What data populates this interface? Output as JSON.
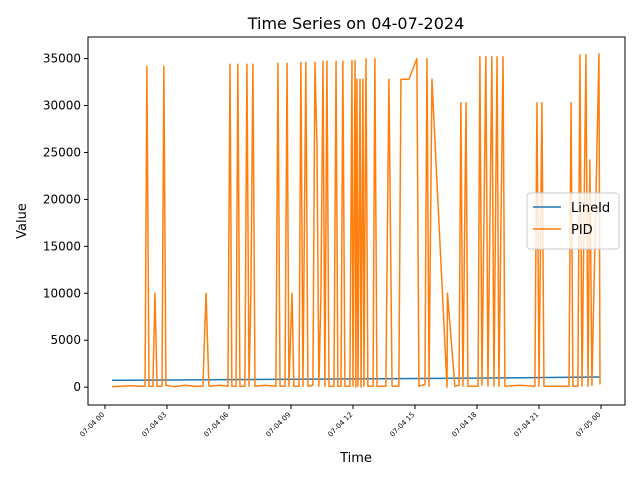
{
  "chart_data": {
    "type": "line",
    "title": "Time Series on 04-07-2024",
    "xlabel": "Time",
    "ylabel": "Value",
    "xlim": [
      -0.82,
      25.16
    ],
    "ylim": [
      -1900,
      37300
    ],
    "xticks": [
      {
        "value": 0,
        "label": "07-04 00"
      },
      {
        "value": 3,
        "label": "07-04 03"
      },
      {
        "value": 6,
        "label": "07-04 06"
      },
      {
        "value": 9,
        "label": "07-04 09"
      },
      {
        "value": 12,
        "label": "07-04 12"
      },
      {
        "value": 15,
        "label": "07-04 15"
      },
      {
        "value": 18,
        "label": "07-04 18"
      },
      {
        "value": 21,
        "label": "07-04 21"
      },
      {
        "value": 24,
        "label": "07-05 00"
      }
    ],
    "yticks": [
      0,
      5000,
      10000,
      15000,
      20000,
      25000,
      30000,
      35000
    ],
    "legend": "center right",
    "series": [
      {
        "name": "LineId",
        "color": "#1f77b4",
        "x": [
          0.34,
          6,
          12,
          18,
          23.95
        ],
        "values": [
          730,
          800,
          880,
          960,
          1080
        ]
      },
      {
        "name": "PID",
        "color": "#ff7f0e",
        "x": [
          0.34,
          0.73,
          1.21,
          1.69,
          1.94,
          2.03,
          2.13,
          2.32,
          2.42,
          2.52,
          2.76,
          2.85,
          2.95,
          3.39,
          3.87,
          4.35,
          4.74,
          4.89,
          5.03,
          5.56,
          5.95,
          6.05,
          6.14,
          6.34,
          6.43,
          6.53,
          6.77,
          6.87,
          6.97,
          7.06,
          7.16,
          7.26,
          7.74,
          8.27,
          8.37,
          8.47,
          8.71,
          8.81,
          8.9,
          9.05,
          9.14,
          9.39,
          9.48,
          9.58,
          9.72,
          9.82,
          10.06,
          10.16,
          10.26,
          10.35,
          10.45,
          10.55,
          10.64,
          10.74,
          10.84,
          11.08,
          11.18,
          11.27,
          11.42,
          11.51,
          11.61,
          11.85,
          11.95,
          12.0,
          12.1,
          12.14,
          12.19,
          12.24,
          12.34,
          12.39,
          12.48,
          12.53,
          12.63,
          12.72,
          12.97,
          13.06,
          13.16,
          13.59,
          13.74,
          13.89,
          14.22,
          14.32,
          14.71,
          15.09,
          15.19,
          15.48,
          15.58,
          15.68,
          15.82,
          16.55,
          16.57,
          16.93,
          17.13,
          17.22,
          17.32,
          17.47,
          17.56,
          18.05,
          18.14,
          18.24,
          18.43,
          18.53,
          18.72,
          18.82,
          18.97,
          19.06,
          19.26,
          19.35,
          20.08,
          20.8,
          20.9,
          21.0,
          21.14,
          21.24,
          22.01,
          22.45,
          22.55,
          22.64,
          22.88,
          22.98,
          23.08,
          23.27,
          23.37,
          23.46,
          23.56,
          23.9,
          23.95
        ],
        "values": [
          50,
          100,
          150,
          100,
          100,
          34200,
          100,
          100,
          10000,
          100,
          100,
          34200,
          200,
          50,
          200,
          100,
          100,
          10000,
          100,
          200,
          100,
          34400,
          100,
          100,
          34400,
          100,
          100,
          34400,
          100,
          10000,
          34400,
          100,
          200,
          100,
          34500,
          100,
          100,
          34500,
          100,
          10000,
          100,
          100,
          34600,
          100,
          34600,
          100,
          200,
          34600,
          25600,
          100,
          10000,
          34700,
          100,
          34700,
          100,
          100,
          34700,
          100,
          100,
          34700,
          100,
          100,
          34800,
          100,
          34800,
          0,
          32800,
          100,
          32800,
          0,
          32800,
          100,
          35000,
          100,
          100,
          35000,
          100,
          100,
          32800,
          100,
          100,
          32800,
          32800,
          35000,
          100,
          300,
          35000,
          100,
          32800,
          0,
          10000,
          100,
          200,
          30300,
          100,
          30300,
          100,
          100,
          35200,
          200,
          35200,
          100,
          35200,
          100,
          35200,
          100,
          35200,
          100,
          200,
          100,
          30300,
          100,
          30300,
          100,
          100,
          100,
          30300,
          100,
          100,
          35400,
          100,
          35400,
          100,
          24200,
          200,
          35500,
          300
        ]
      }
    ]
  }
}
